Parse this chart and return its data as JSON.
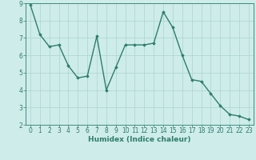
{
  "x": [
    0,
    1,
    2,
    3,
    4,
    5,
    6,
    7,
    8,
    9,
    10,
    11,
    12,
    13,
    14,
    15,
    16,
    17,
    18,
    19,
    20,
    21,
    22,
    23
  ],
  "y": [
    8.9,
    7.2,
    6.5,
    6.6,
    5.4,
    4.7,
    4.8,
    7.1,
    4.0,
    5.3,
    6.6,
    6.6,
    6.6,
    6.7,
    8.5,
    7.6,
    6.0,
    4.6,
    4.5,
    3.8,
    3.1,
    2.6,
    2.5,
    2.3
  ],
  "xlabel": "Humidex (Indice chaleur)",
  "xlim": [
    -0.5,
    23.5
  ],
  "ylim": [
    2,
    9
  ],
  "yticks": [
    2,
    3,
    4,
    5,
    6,
    7,
    8,
    9
  ],
  "xticks": [
    0,
    1,
    2,
    3,
    4,
    5,
    6,
    7,
    8,
    9,
    10,
    11,
    12,
    13,
    14,
    15,
    16,
    17,
    18,
    19,
    20,
    21,
    22,
    23
  ],
  "line_color": "#2d7d6e",
  "marker": "D",
  "marker_size": 1.8,
  "bg_color": "#ceecea",
  "grid_color": "#b0d8d4",
  "axis_color": "#2d7d6e",
  "tick_color": "#2d7d6e",
  "label_color": "#2d7d6e",
  "xlabel_fontsize": 6.5,
  "tick_fontsize": 5.5,
  "linewidth": 1.0
}
